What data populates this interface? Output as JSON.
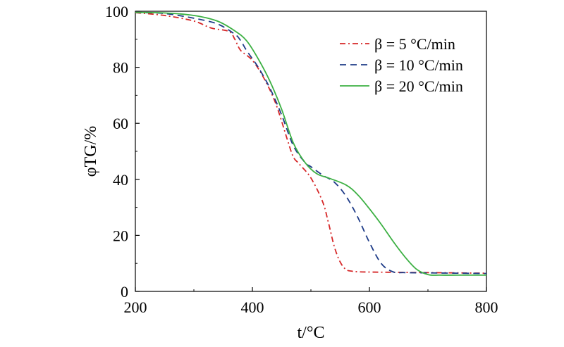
{
  "chart_data": {
    "type": "line",
    "xlabel": "t/°C",
    "ylabel": "φTG/%",
    "xlim": [
      200,
      800
    ],
    "ylim": [
      0,
      100
    ],
    "x_ticks": [
      200,
      400,
      600,
      800
    ],
    "y_ticks": [
      0,
      20,
      40,
      60,
      80,
      100
    ],
    "grid": false,
    "legend_position": "top-right",
    "series": [
      {
        "name": "β = 5 °C/min",
        "color": "#d62728",
        "dash": "dash-dot",
        "x": [
          200,
          250,
          300,
          330,
          360,
          370,
          380,
          400,
          420,
          440,
          460,
          470,
          480,
          500,
          520,
          530,
          540,
          550,
          560,
          570,
          580,
          600,
          650,
          700,
          750,
          800
        ],
        "y": [
          99.5,
          98.5,
          96.5,
          94,
          92.8,
          90,
          86,
          82.5,
          76,
          67,
          54,
          48,
          45.5,
          40.5,
          32,
          24.5,
          16,
          10.5,
          7.8,
          7.2,
          7,
          6.9,
          6.8,
          6.7,
          6.6,
          6.5
        ]
      },
      {
        "name": "β = 10 °C/min",
        "color": "#1f3c88",
        "dash": "dash",
        "x": [
          200,
          250,
          300,
          340,
          370,
          380,
          390,
          410,
          430,
          450,
          470,
          490,
          500,
          520,
          540,
          560,
          580,
          600,
          620,
          640,
          660,
          700,
          750,
          800
        ],
        "y": [
          99.6,
          99.2,
          97.5,
          95.5,
          91.8,
          89.5,
          86,
          80,
          72.5,
          63,
          52,
          46,
          44.5,
          41.5,
          39,
          34,
          26.5,
          17.5,
          10,
          7,
          6.7,
          6.6,
          6.5,
          6.4
        ]
      },
      {
        "name": "β = 20 °C/min",
        "color": "#3cb043",
        "dash": "solid",
        "x": [
          200,
          250,
          300,
          340,
          370,
          390,
          410,
          430,
          450,
          470,
          490,
          510,
          530,
          560,
          580,
          600,
          620,
          640,
          660,
          680,
          700,
          720,
          750,
          800
        ],
        "y": [
          99.6,
          99.4,
          98.5,
          96.5,
          93,
          89.5,
          83,
          75,
          65,
          53,
          46,
          42,
          40.5,
          38,
          34.5,
          29.5,
          24,
          18,
          12.5,
          8,
          6,
          5.8,
          5.8,
          5.8
        ]
      }
    ]
  }
}
